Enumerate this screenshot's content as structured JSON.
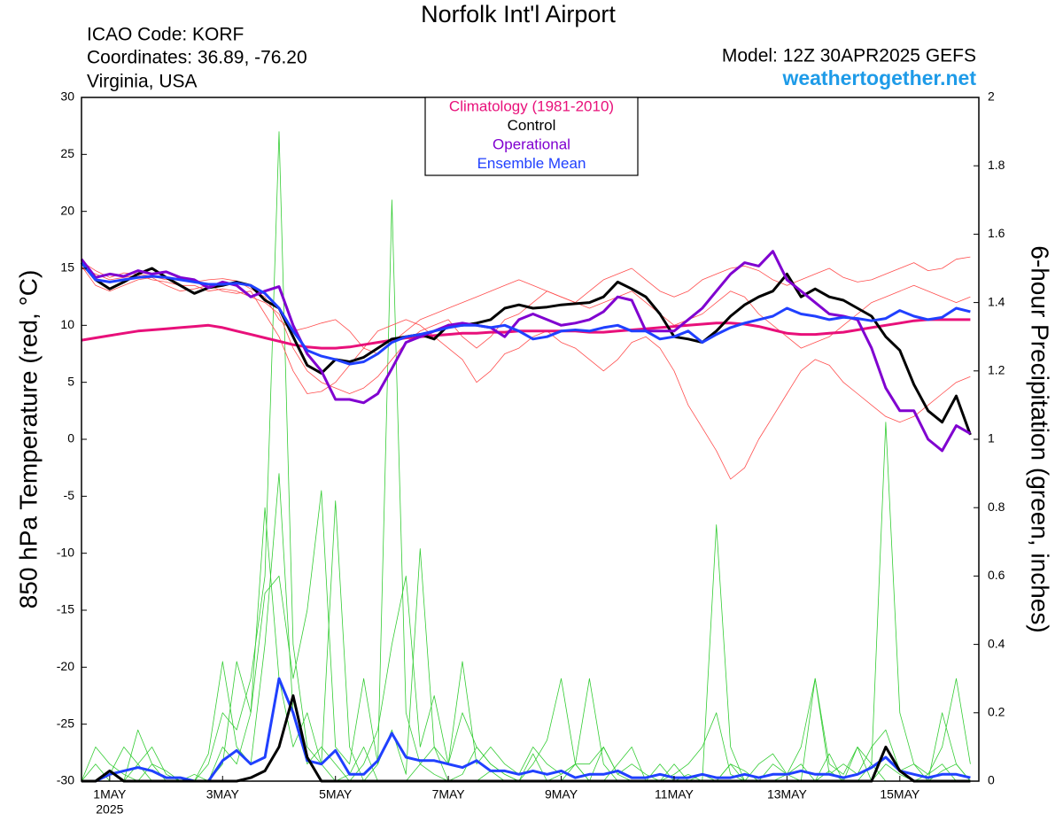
{
  "chart_data": {
    "type": "line",
    "title": "Norfolk Int'l Airport",
    "info": [
      "ICAO Code: KORF",
      "Coordinates: 36.89, -76.20",
      "Virginia, USA"
    ],
    "model": "Model: 12Z 30APR2025 GEFS",
    "source": "weathertogether.net",
    "ylabel": "850 hPa Temperature (red, °C)",
    "y2label": "6-hour Precipitation (green, inches)",
    "year_label": "2025",
    "xlim": [
      0.5,
      16.4
    ],
    "xticks": [
      {
        "value": 1,
        "label": "1MAY"
      },
      {
        "value": 3,
        "label": "3MAY"
      },
      {
        "value": 5,
        "label": "5MAY"
      },
      {
        "value": 7,
        "label": "7MAY"
      },
      {
        "value": 9,
        "label": "9MAY"
      },
      {
        "value": 11,
        "label": "11MAY"
      },
      {
        "value": 13,
        "label": "13MAY"
      },
      {
        "value": 15,
        "label": "15MAY"
      }
    ],
    "ylim": [
      -30,
      30
    ],
    "yticks": [
      -30,
      -25,
      -20,
      -15,
      -10,
      -5,
      0,
      5,
      10,
      15,
      20,
      25,
      30
    ],
    "y2lim": [
      0,
      2
    ],
    "y2ticks": [
      0,
      0.2,
      0.4,
      0.6,
      0.8,
      1,
      1.2,
      1.4,
      1.6,
      1.8,
      2
    ],
    "x": [
      0.5,
      0.75,
      1,
      1.25,
      1.5,
      1.75,
      2,
      2.25,
      2.5,
      2.75,
      3,
      3.25,
      3.5,
      3.75,
      4,
      4.25,
      4.5,
      4.75,
      5,
      5.25,
      5.5,
      5.75,
      6,
      6.25,
      6.5,
      6.75,
      7,
      7.25,
      7.5,
      7.75,
      8,
      8.25,
      8.5,
      8.75,
      9,
      9.25,
      9.5,
      9.75,
      10,
      10.25,
      10.5,
      10.75,
      11,
      11.25,
      11.5,
      11.75,
      12,
      12.25,
      12.5,
      12.75,
      13,
      13.25,
      13.5,
      13.75,
      14,
      14.25,
      14.5,
      14.75,
      15,
      15.25,
      15.5,
      15.75,
      16,
      16.25
    ],
    "series": [
      {
        "color": "#33cc33",
        "width": 0.8,
        "axis": "y2",
        "values": [
          0,
          0,
          0.02,
          0.1,
          0.05,
          0,
          0,
          0,
          0,
          0.05,
          0.2,
          0.15,
          0.3,
          0.6,
          1.9,
          0.4,
          0.1,
          0.05,
          0,
          0.02,
          0.1,
          0,
          0,
          0,
          0.05,
          0.02,
          0,
          0,
          0,
          0.03,
          0,
          0,
          0.08,
          0,
          0,
          0.05,
          0.3,
          0.05,
          0,
          0,
          0,
          0,
          0,
          0.02,
          0,
          0,
          0.05,
          0,
          0,
          0,
          0,
          0,
          0,
          0.03,
          0,
          0,
          0.05,
          0,
          0,
          0,
          0.02,
          0.05,
          0,
          0
        ]
      },
      {
        "color": "#33cc33",
        "width": 0.8,
        "axis": "y2",
        "values": [
          0,
          0.05,
          0,
          0,
          0.15,
          0.05,
          0,
          0,
          0,
          0,
          0.1,
          0.05,
          0.2,
          0.8,
          0.3,
          0.1,
          0.2,
          0.05,
          0.82,
          0.1,
          0,
          0.05,
          1.7,
          0.2,
          0.05,
          0.1,
          0,
          0.02,
          0.1,
          0.05,
          0.02,
          0,
          0,
          0,
          0.02,
          0.05,
          0,
          0.1,
          0.02,
          0,
          0,
          0,
          0.05,
          0,
          0,
          0.75,
          0.1,
          0,
          0,
          0,
          0.02,
          0.05,
          0,
          0.08,
          0,
          0.1,
          0,
          0.05,
          0.02,
          0,
          0,
          0.2,
          0.05,
          0
        ]
      },
      {
        "color": "#33cc33",
        "width": 0.8,
        "axis": "y2",
        "values": [
          0,
          0,
          0.03,
          0,
          0.05,
          0.1,
          0.02,
          0,
          0,
          0.08,
          0.35,
          0.1,
          0.05,
          0.4,
          0.9,
          0.2,
          0.05,
          0.1,
          0.05,
          0,
          0.05,
          0.15,
          0.4,
          0.6,
          0.1,
          0.25,
          0.05,
          0.2,
          0.1,
          0.05,
          0.02,
          0,
          0.05,
          0.12,
          0.3,
          0.05,
          0,
          0,
          0.05,
          0.1,
          0,
          0.05,
          0,
          0,
          0.02,
          0,
          0.05,
          0.03,
          0,
          0.05,
          0.02,
          0.1,
          0.3,
          0.05,
          0.02,
          0.1,
          0.05,
          1.05,
          0.2,
          0.05,
          0,
          0.03,
          0.05,
          0
        ]
      },
      {
        "color": "#33cc33",
        "width": 0.8,
        "axis": "y2",
        "values": [
          0,
          0.1,
          0.05,
          0.02,
          0,
          0.05,
          0.03,
          0,
          0.02,
          0,
          0.05,
          0.35,
          0.2,
          0.55,
          0.6,
          0.3,
          0.5,
          0.85,
          0.1,
          0.05,
          0.3,
          0.05,
          0.15,
          0.02,
          0.68,
          0.1,
          0.05,
          0.35,
          0.05,
          0.1,
          0.05,
          0.02,
          0.1,
          0.05,
          0.02,
          0.05,
          0.05,
          0.1,
          0.02,
          0.05,
          0.02,
          0,
          0.02,
          0.05,
          0.1,
          0.2,
          0.02,
          0,
          0.05,
          0.08,
          0.02,
          0,
          0.3,
          0.02,
          0.05,
          0.02,
          0.1,
          0.15,
          0.03,
          0.05,
          0.02,
          0.1,
          0.3,
          0.05
        ]
      },
      {
        "color": "#ff4d4d",
        "width": 0.8,
        "values": [
          15,
          14.5,
          14,
          14.2,
          14.4,
          14,
          13.8,
          13.5,
          13.5,
          13,
          13.2,
          13,
          12.5,
          12,
          11,
          8,
          6,
          5,
          4.5,
          4,
          4.5,
          5.5,
          7,
          8.5,
          9.5,
          10,
          10.5,
          9,
          8,
          9,
          10.5,
          11,
          12,
          13,
          12.5,
          12,
          13,
          14,
          14.5,
          15,
          14,
          13,
          12.5,
          13,
          14,
          14.5,
          15,
          15.2,
          14.8,
          14,
          13.5,
          14,
          14.5,
          15,
          14.2,
          13.8,
          14,
          14.5,
          15,
          15.5,
          14.8,
          15,
          15.8,
          16
        ]
      },
      {
        "color": "#ff4d4d",
        "width": 0.8,
        "values": [
          15.2,
          13.5,
          13,
          13.5,
          14,
          14.2,
          13.5,
          13,
          13.2,
          13.5,
          13,
          12.8,
          13,
          11,
          9,
          6,
          4,
          4.2,
          5,
          6.5,
          8,
          9.5,
          10,
          10.5,
          10,
          9,
          8,
          7,
          5,
          6,
          7.5,
          8,
          9,
          9.5,
          8.5,
          8,
          7,
          6,
          7,
          8.5,
          9,
          8,
          6,
          3,
          1,
          -1,
          -3.5,
          -2.5,
          0,
          2,
          4,
          6,
          7,
          6.5,
          5,
          4,
          3,
          2,
          1.5,
          2,
          3,
          4,
          5,
          5.5
        ]
      },
      {
        "color": "#ff4d4d",
        "width": 0.8,
        "values": [
          15.6,
          14.8,
          14.2,
          14.6,
          14.5,
          14.3,
          14,
          14.2,
          13.8,
          14,
          14.1,
          13.9,
          13.2,
          12.5,
          10.5,
          9.5,
          9.8,
          10.2,
          10.5,
          9.5,
          8,
          7.5,
          8.5,
          9.5,
          10.5,
          11,
          11.5,
          12,
          12.5,
          13,
          13.5,
          14,
          13.5,
          13,
          12.5,
          12,
          11.5,
          12,
          12.5,
          13,
          12,
          11,
          10,
          10.5,
          11,
          12,
          13,
          12.5,
          11,
          10,
          9,
          8,
          8.5,
          9,
          10,
          11,
          12,
          12.5,
          13,
          13.5,
          13,
          12.5,
          12,
          12.5
        ]
      },
      {
        "color": "#2040ff",
        "width": 3,
        "axis": "y2",
        "values": [
          0,
          0,
          0.02,
          0.03,
          0.04,
          0.03,
          0.01,
          0.01,
          0,
          0,
          0.06,
          0.09,
          0.05,
          0.07,
          0.3,
          0.2,
          0.06,
          0.05,
          0.09,
          0.02,
          0.02,
          0.06,
          0.14,
          0.07,
          0.06,
          0.06,
          0.05,
          0.04,
          0.06,
          0.03,
          0.03,
          0.02,
          0.03,
          0.02,
          0.03,
          0.01,
          0.02,
          0.02,
          0.03,
          0.01,
          0.01,
          0.02,
          0.01,
          0.01,
          0.02,
          0.01,
          0.01,
          0.02,
          0.01,
          0.02,
          0.02,
          0.03,
          0.02,
          0.02,
          0.01,
          0.02,
          0.04,
          0.07,
          0.03,
          0.02,
          0.01,
          0.02,
          0.02,
          0.01
        ]
      },
      {
        "color": "#000000",
        "width": 3,
        "axis": "y2",
        "values": [
          0,
          0,
          0.03,
          0,
          0,
          0,
          0,
          0,
          0,
          0,
          0,
          0,
          0.01,
          0.03,
          0.1,
          0.25,
          0.07,
          0,
          0,
          0,
          0,
          0,
          0,
          0,
          0,
          0,
          0,
          0,
          0,
          0,
          0,
          0,
          0,
          0,
          0,
          0,
          0,
          0,
          0,
          0,
          0,
          0,
          0,
          0,
          0,
          0,
          0,
          0,
          0,
          0,
          0,
          0,
          0,
          0,
          0,
          0,
          0,
          0.1,
          0.03,
          0,
          0,
          0,
          0,
          0
        ]
      },
      {
        "name": "Climatology (1981-2010)",
        "color": "#e8107a",
        "width": 3,
        "values": [
          8.7,
          8.9,
          9.1,
          9.3,
          9.5,
          9.6,
          9.7,
          9.8,
          9.9,
          10,
          9.8,
          9.5,
          9.2,
          8.9,
          8.6,
          8.3,
          8.1,
          8,
          8,
          8.1,
          8.3,
          8.5,
          8.7,
          8.9,
          9,
          9.1,
          9.2,
          9.3,
          9.3,
          9.4,
          9.4,
          9.5,
          9.5,
          9.5,
          9.5,
          9.5,
          9.4,
          9.4,
          9.5,
          9.6,
          9.7,
          9.8,
          9.9,
          10,
          10.1,
          10.2,
          10.2,
          10.1,
          9.9,
          9.6,
          9.3,
          9.2,
          9.2,
          9.3,
          9.4,
          9.6,
          9.8,
          10,
          10.2,
          10.4,
          10.5,
          10.5,
          10.5,
          10.5
        ]
      },
      {
        "name": "Control",
        "color": "#000000",
        "width": 3,
        "values": [
          15.5,
          14,
          13.2,
          13.8,
          14.5,
          15,
          14.2,
          13.5,
          12.8,
          13.3,
          13.5,
          13.8,
          13.5,
          12.2,
          11.5,
          9,
          6.5,
          5.8,
          7,
          6.8,
          7.2,
          8,
          8.8,
          9,
          9.2,
          8.8,
          10,
          10,
          10.2,
          10.5,
          11.5,
          11.8,
          11.5,
          11.6,
          11.8,
          11.9,
          12,
          12.5,
          13.8,
          13.2,
          12.5,
          11,
          9,
          8.8,
          8.5,
          9.5,
          10.8,
          11.8,
          12.5,
          13,
          14.5,
          12.5,
          13.2,
          12.5,
          12.2,
          11.5,
          10.8,
          9,
          7.8,
          4.8,
          2.5,
          1.5,
          3.8,
          0.4
        ]
      },
      {
        "name": "Operational",
        "color": "#8000d0",
        "width": 3,
        "values": [
          15.8,
          14.2,
          14.5,
          14.3,
          14.8,
          14.5,
          14.7,
          14.2,
          14,
          13.3,
          13.8,
          13.5,
          12.5,
          13,
          13.4,
          10,
          7.5,
          6,
          3.5,
          3.5,
          3.2,
          4,
          6.2,
          8.5,
          9,
          9.5,
          10,
          10.2,
          10,
          9.8,
          9,
          10.5,
          11,
          10.5,
          10,
          10.2,
          10.5,
          11.2,
          12.5,
          12.2,
          9.5,
          9.5,
          9.5,
          10.5,
          11.5,
          13,
          14.5,
          15.5,
          15.2,
          16.5,
          14,
          13,
          12,
          11,
          10.8,
          10.5,
          8,
          4.5,
          2.5,
          2.5,
          0,
          -1,
          1.2,
          0.5
        ]
      },
      {
        "name": "Ensemble Mean",
        "color": "#2040ff",
        "width": 3,
        "values": [
          15.5,
          14,
          13.8,
          14,
          14.2,
          14.3,
          14.2,
          14,
          13.8,
          13.6,
          13.6,
          13.7,
          13.5,
          12.8,
          11.5,
          9.5,
          7.8,
          7.3,
          7,
          6.6,
          6.8,
          7.5,
          8.5,
          9,
          9.2,
          9.5,
          9.8,
          10,
          10,
          9.8,
          10,
          9.5,
          8.8,
          9,
          9.5,
          9.6,
          9.5,
          9.8,
          10,
          9.5,
          9.5,
          8.8,
          9,
          9.5,
          8.5,
          9.2,
          9.8,
          10.2,
          10.5,
          10.8,
          11.5,
          11,
          10.8,
          10.5,
          10.7,
          10.6,
          10.4,
          10.6,
          11.3,
          10.8,
          10.5,
          10.7,
          11.5,
          11.2
        ]
      }
    ]
  }
}
